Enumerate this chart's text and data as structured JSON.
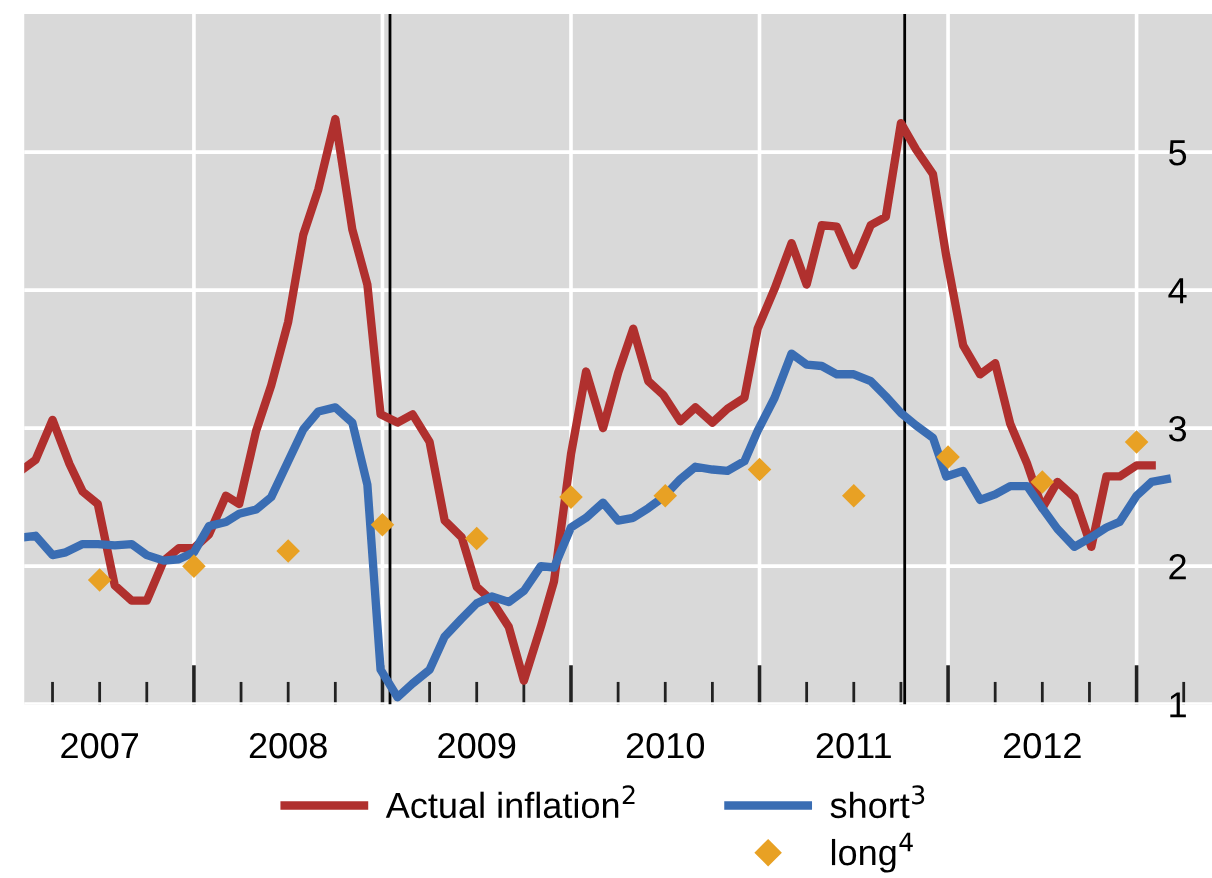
{
  "chart_data": {
    "type": "line",
    "x": [
      2007.1,
      2007.16,
      2007.25,
      2007.34,
      2007.41,
      2007.49,
      2007.58,
      2007.67,
      2007.75,
      2007.84,
      2007.92,
      2008.0,
      2008.08,
      2008.17,
      2008.24,
      2008.33,
      2008.41,
      2008.5,
      2008.58,
      2008.66,
      2008.75,
      2008.84,
      2008.92,
      2008.99,
      2009.08,
      2009.16,
      2009.25,
      2009.33,
      2009.42,
      2009.5,
      2009.58,
      2009.67,
      2009.75,
      2009.84,
      2009.91,
      2010.0,
      2010.08,
      2010.17,
      2010.25,
      2010.33,
      2010.41,
      2010.49,
      2010.58,
      2010.66,
      2010.75,
      2010.83,
      2010.92,
      2010.99,
      2011.08,
      2011.17,
      2011.25,
      2011.33,
      2011.41,
      2011.5,
      2011.59,
      2011.67,
      2011.75,
      2011.83,
      2011.92,
      2011.99,
      2012.08,
      2012.17,
      2012.25,
      2012.33,
      2012.42,
      2012.5,
      2012.58,
      2012.67,
      2012.76,
      2012.84,
      2012.91,
      2013.0,
      2013.08
    ],
    "series": [
      {
        "name": "Actual inflation$^{2}$",
        "color": "#b0302e",
        "values": [
          2.71,
          2.77,
          3.06,
          2.74,
          2.54,
          2.45,
          1.86,
          1.75,
          1.75,
          2.04,
          2.13,
          2.13,
          2.23,
          2.51,
          2.45,
          2.98,
          3.31,
          3.77,
          4.4,
          4.73,
          5.24,
          4.44,
          4.04,
          3.1,
          3.04,
          3.1,
          2.9,
          2.33,
          2.21,
          1.85,
          1.75,
          1.56,
          1.17,
          1.56,
          1.89,
          2.81,
          3.41,
          3.0,
          3.4,
          3.72,
          3.34,
          3.24,
          3.05,
          3.15,
          3.04,
          3.14,
          3.22,
          3.72,
          4.01,
          4.34,
          4.04,
          4.47,
          4.46,
          4.18,
          4.47,
          4.53,
          5.21,
          5.02,
          4.84,
          4.25,
          3.6,
          3.39,
          3.47,
          3.03,
          2.74,
          2.42,
          2.61,
          2.5,
          2.14,
          2.65,
          2.65,
          2.73,
          2.73
        ]
      },
      {
        "name": "short$^{3}$",
        "color": "#3a6db3",
        "x": [
          2007.1,
          2007.16,
          2007.25,
          2007.32,
          2007.41,
          2007.49,
          2007.58,
          2007.67,
          2007.75,
          2007.84,
          2007.92,
          2008.0,
          2008.08,
          2008.17,
          2008.24,
          2008.33,
          2008.41,
          2008.5,
          2008.58,
          2008.66,
          2008.75,
          2008.84,
          2008.92,
          2008.99,
          2009.08,
          2009.16,
          2009.25,
          2009.33,
          2009.42,
          2009.5,
          2009.58,
          2009.67,
          2009.75,
          2009.84,
          2009.91,
          2010.0,
          2010.08,
          2010.17,
          2010.25,
          2010.33,
          2010.41,
          2010.49,
          2010.58,
          2010.66,
          2010.75,
          2010.83,
          2010.92,
          2010.99,
          2011.08,
          2011.17,
          2011.25,
          2011.33,
          2011.41,
          2011.5,
          2011.59,
          2011.67,
          2011.75,
          2011.83,
          2011.92,
          2011.99,
          2012.08,
          2012.17,
          2012.25,
          2012.33,
          2012.42,
          2012.5,
          2012.58,
          2012.67,
          2012.76,
          2012.84,
          2012.91,
          2013.0,
          2013.08,
          2013.16
        ],
        "values": [
          2.21,
          2.22,
          2.08,
          2.1,
          2.16,
          2.16,
          2.15,
          2.16,
          2.08,
          2.04,
          2.05,
          2.1,
          2.29,
          2.32,
          2.38,
          2.41,
          2.5,
          2.76,
          2.99,
          3.12,
          3.15,
          3.04,
          2.59,
          1.25,
          1.05,
          1.15,
          1.25,
          1.49,
          1.62,
          1.73,
          1.78,
          1.74,
          1.82,
          2.0,
          1.99,
          2.28,
          2.35,
          2.46,
          2.33,
          2.35,
          2.42,
          2.5,
          2.63,
          2.72,
          2.7,
          2.69,
          2.76,
          2.98,
          3.22,
          3.54,
          3.46,
          3.45,
          3.39,
          3.39,
          3.34,
          3.23,
          3.11,
          3.02,
          2.93,
          2.65,
          2.69,
          2.48,
          2.52,
          2.58,
          2.58,
          2.42,
          2.27,
          2.14,
          2.21,
          2.28,
          2.32,
          2.51,
          2.61,
          2.63
        ]
      },
      {
        "name": "long$^{4}$",
        "color": "#e8a124",
        "type": "scatter",
        "marker": "diamond",
        "x": [
          2007.5,
          2008.0,
          2008.5,
          2009.0,
          2009.5,
          2010.0,
          2010.5,
          2011.0,
          2011.5,
          2012.0,
          2012.5,
          2013.0
        ],
        "values": [
          1.9,
          2.0,
          2.11,
          2.3,
          2.2,
          2.5,
          2.51,
          2.7,
          2.51,
          2.79,
          2.61,
          2.9
        ]
      }
    ],
    "xlim": [
      2007.1,
      2013.4
    ],
    "xticks": [
      {
        "value": 2007.25,
        "label": null
      },
      {
        "value": 2007.5,
        "label": "2007"
      },
      {
        "value": 2007.75,
        "label": null
      },
      {
        "value": 2008,
        "label": null
      },
      {
        "value": 2008.25,
        "label": null
      },
      {
        "value": 2008.5,
        "label": "2008"
      },
      {
        "value": 2008.75,
        "label": null
      },
      {
        "value": 2009,
        "label": null
      },
      {
        "value": 2009.25,
        "label": null
      },
      {
        "value": 2009.5,
        "label": "2009"
      },
      {
        "value": 2009.75,
        "label": null
      },
      {
        "value": 2010,
        "label": null
      },
      {
        "value": 2010.25,
        "label": null
      },
      {
        "value": 2010.5,
        "label": "2010"
      },
      {
        "value": 2010.75,
        "label": null
      },
      {
        "value": 2011,
        "label": null
      },
      {
        "value": 2011.25,
        "label": null
      },
      {
        "value": 2011.5,
        "label": "2011"
      },
      {
        "value": 2011.75,
        "label": null
      },
      {
        "value": 2012,
        "label": null
      },
      {
        "value": 2012.25,
        "label": null
      },
      {
        "value": 2012.5,
        "label": "2012"
      },
      {
        "value": 2012.75,
        "label": null
      },
      {
        "value": 2013,
        "label": null
      },
      {
        "value": 2013.25,
        "label": null
      }
    ],
    "ylim": [
      1,
      6
    ],
    "yticks": [
      1,
      2,
      3,
      4,
      5
    ],
    "ref_lines": [
      {
        "axis": "x",
        "value": 2009.04,
        "color": "#000000"
      },
      {
        "axis": "x",
        "value": 2011.77,
        "color": "#000000"
      }
    ],
    "grid": true,
    "legend": "bottom",
    "line_style": "solid",
    "marker": "none"
  }
}
